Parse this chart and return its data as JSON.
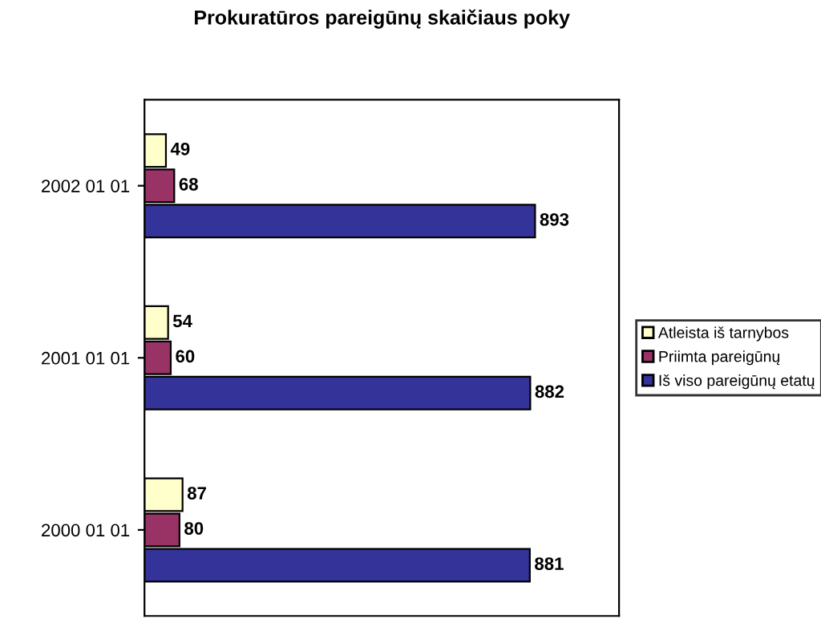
{
  "chart_data": {
    "type": "bar",
    "orientation": "horizontal",
    "title": "Prokuratūros pareigūnų skaičiaus poky",
    "categories": [
      "2002 01 01",
      "2001 01 01",
      "2000 01 01"
    ],
    "series": [
      {
        "name": "Atleista iš tarnybos",
        "color": "#ffffcc",
        "values": [
          49,
          54,
          87
        ]
      },
      {
        "name": "Priimta pareigūnų",
        "color": "#993366",
        "values": [
          68,
          60,
          80
        ]
      },
      {
        "name": "Iš viso pareigūnų etatų",
        "color": "#333399",
        "values": [
          893,
          882,
          881
        ]
      }
    ],
    "data_labels": true,
    "legend": "right",
    "grid": false,
    "tick_labels": "y"
  }
}
